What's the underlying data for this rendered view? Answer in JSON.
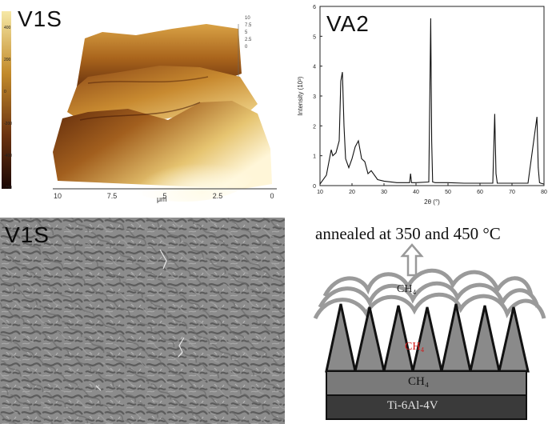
{
  "panels": {
    "afm": {
      "label": "V1S",
      "colorbar_ticks": [
        "400",
        "200",
        "0",
        "-200",
        "-400",
        "-750"
      ],
      "x_ticks": [
        "10",
        "7.5",
        "5",
        "2.5",
        "0"
      ],
      "x_unit": "μm",
      "z_ticks": [
        "10",
        "7.5",
        "5",
        "2.5",
        "0"
      ],
      "colors": {
        "dark": "#3a1408",
        "mid": "#a86a1c",
        "light": "#f6e8a6"
      }
    },
    "xrd": {
      "label": "VA2",
      "ylabel": "Intensity (10³)",
      "xlabel": "2θ (°)",
      "y_ticks": [
        "0",
        "1",
        "2",
        "3",
        "4",
        "5",
        "6"
      ],
      "x_ticks": [
        "10",
        "20",
        "30",
        "40",
        "50",
        "60",
        "70",
        "80"
      ]
    },
    "sem": {
      "label": "V1S"
    },
    "schematic": {
      "caption": "annealed at 350 and 450 °C",
      "layer_top": "CH₄",
      "layer_mid": "CH₄",
      "layer_bottom": "CH₄",
      "substrate": "Ti-6Al-4V",
      "colors": {
        "red_label": "#d01818",
        "dark_fill": "#3a3a3a",
        "mid_fill": "#7a7a7a",
        "cone_fill": "#8a8a8a"
      }
    }
  },
  "chart_data": {
    "type": "line",
    "title": "VA2",
    "xlabel": "2θ (°)",
    "ylabel": "Intensity (10³)",
    "xlim": [
      10,
      80
    ],
    "ylim": [
      0,
      6
    ],
    "x": [
      10,
      12,
      13.5,
      14,
      15,
      16,
      16.5,
      17,
      17.5,
      18,
      19,
      20,
      21,
      22,
      22.5,
      23,
      24,
      25,
      26,
      28,
      30,
      34,
      38,
      38.3,
      38.6,
      40,
      44,
      44.6,
      44.9,
      45.2,
      46,
      50,
      55,
      60,
      64,
      64.6,
      65,
      65.4,
      66,
      70,
      75,
      77.8,
      78.2,
      78.6,
      79,
      80
    ],
    "y": [
      0.05,
      0.35,
      1.2,
      1.0,
      1.1,
      1.5,
      3.5,
      3.8,
      2.0,
      0.9,
      0.6,
      0.9,
      1.3,
      1.5,
      1.2,
      0.9,
      0.8,
      0.4,
      0.5,
      0.2,
      0.15,
      0.1,
      0.1,
      0.4,
      0.1,
      0.1,
      0.12,
      5.6,
      1.5,
      0.12,
      0.1,
      0.1,
      0.08,
      0.08,
      0.08,
      2.4,
      0.4,
      0.08,
      0.08,
      0.08,
      0.08,
      2.3,
      0.6,
      0.1,
      0.08,
      0.05
    ]
  }
}
